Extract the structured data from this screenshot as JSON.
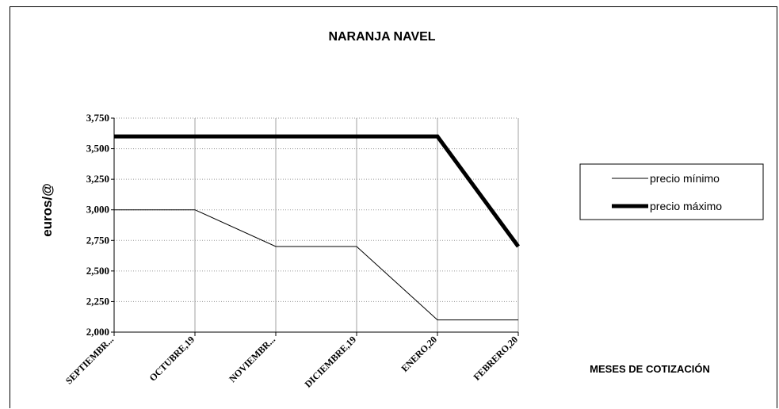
{
  "chart_data": {
    "type": "line",
    "title": "NARANJA  NAVEL",
    "ylabel": "euros/@",
    "xlabel": "MESES DE COTIZACIÓN",
    "categories": [
      "SEPTIEMBR...",
      "OCTUBRE,19",
      "NOVIEMBR...",
      "DICIEMBRE,19",
      "ENERO,20",
      "FEBRERO,20"
    ],
    "series": [
      {
        "name": "precio mínimo",
        "values": [
          3.0,
          3.0,
          2.7,
          2.7,
          2.1,
          2.1
        ],
        "color": "#000000",
        "stroke_style": "thin"
      },
      {
        "name": "precio máximo",
        "values": [
          3.6,
          3.6,
          3.6,
          3.6,
          3.6,
          2.7
        ],
        "color": "#000000",
        "stroke_style": "thick"
      }
    ],
    "ylim": [
      2.0,
      3.75
    ],
    "yticks": [
      2.0,
      2.25,
      2.5,
      2.75,
      3.0,
      3.25,
      3.5,
      3.75
    ],
    "ytick_labels": [
      "2,000",
      "2,250",
      "2,500",
      "2,750",
      "3,000",
      "3,250",
      "3,500",
      "3,750"
    ],
    "grid": "horizontal dotted, vertical solid gray",
    "legend_position": "right"
  }
}
